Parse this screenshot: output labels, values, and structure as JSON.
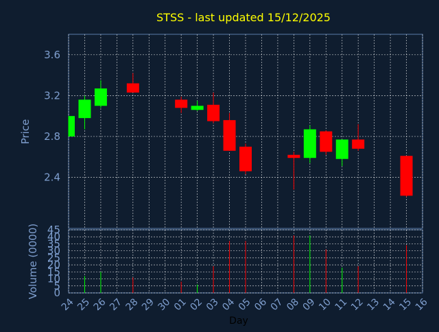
{
  "chart_data": {
    "type": "candlestick",
    "title": "STSS - last updated 15/12/2025",
    "xlabel": "Day",
    "price_ylabel": "Price",
    "volume_ylabel": "Volume (0000)",
    "price_yticks": [
      "2.4",
      "2.8",
      "3.2",
      "3.6"
    ],
    "price_ylim": [
      1.9,
      3.8
    ],
    "volume_yticks": [
      "0",
      "5",
      "10",
      "15",
      "20",
      "25",
      "30",
      "35",
      "40",
      "45"
    ],
    "volume_ylim": [
      0,
      45
    ],
    "days": [
      "24",
      "25",
      "26",
      "27",
      "28",
      "29",
      "30",
      "01",
      "02",
      "03",
      "04",
      "05",
      "06",
      "07",
      "08",
      "09",
      "10",
      "11",
      "12",
      "13",
      "14",
      "15",
      "16"
    ],
    "candles": [
      {
        "day": "24",
        "open": 2.8,
        "high": 3.0,
        "low": 2.8,
        "close": 3.0,
        "volume": 0
      },
      {
        "day": "25",
        "open": 2.98,
        "high": 3.2,
        "low": 2.87,
        "close": 3.16,
        "volume": 12
      },
      {
        "day": "26",
        "open": 3.1,
        "high": 3.35,
        "low": 3.08,
        "close": 3.27,
        "volume": 15
      },
      {
        "day": "28",
        "open": 3.32,
        "high": 3.42,
        "low": 3.23,
        "close": 3.23,
        "volume": 11
      },
      {
        "day": "01",
        "open": 3.16,
        "high": 3.19,
        "low": 3.03,
        "close": 3.08,
        "volume": 8
      },
      {
        "day": "02",
        "open": 3.06,
        "high": 3.15,
        "low": 3.05,
        "close": 3.1,
        "volume": 6
      },
      {
        "day": "03",
        "open": 3.11,
        "high": 3.23,
        "low": 2.93,
        "close": 2.95,
        "volume": 19
      },
      {
        "day": "04",
        "open": 2.96,
        "high": 3.03,
        "low": 2.66,
        "close": 2.66,
        "volume": 37
      },
      {
        "day": "05",
        "open": 2.7,
        "high": 2.73,
        "low": 2.43,
        "close": 2.46,
        "volume": 37
      },
      {
        "day": "08",
        "open": 2.62,
        "high": 2.65,
        "low": 2.28,
        "close": 2.59,
        "volume": 41
      },
      {
        "day": "09",
        "open": 2.59,
        "high": 2.91,
        "low": 2.54,
        "close": 2.87,
        "volume": 41
      },
      {
        "day": "10",
        "open": 2.85,
        "high": 2.86,
        "low": 2.62,
        "close": 2.65,
        "volume": 31
      },
      {
        "day": "11",
        "open": 2.58,
        "high": 2.77,
        "low": 2.51,
        "close": 2.77,
        "volume": 18
      },
      {
        "day": "12",
        "open": 2.77,
        "high": 2.92,
        "low": 2.66,
        "close": 2.68,
        "volume": 19
      },
      {
        "day": "15",
        "open": 2.61,
        "high": 2.61,
        "low": 2.21,
        "close": 2.22,
        "volume": 34
      }
    ],
    "grid": true,
    "colors": {
      "background": "#0f1d2f",
      "title": "#ffff00",
      "axis_text": "#7f9fcf",
      "up": "#00ff00",
      "down": "#ff0000",
      "grid": "#ffffff"
    }
  }
}
